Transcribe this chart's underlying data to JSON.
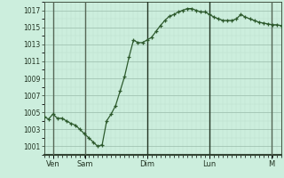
{
  "bg_color": "#cceedd",
  "line_color": "#2d5a2d",
  "grid_color_major": "#99bbaa",
  "grid_color_minor": "#bbddcc",
  "ylim": [
    1000.0,
    1018.0
  ],
  "yticks": [
    1001,
    1003,
    1005,
    1007,
    1009,
    1011,
    1013,
    1015,
    1017
  ],
  "day_labels": [
    "Ven",
    "Sam",
    "Dim",
    "Lun",
    "M"
  ],
  "day_x_positions": [
    12,
    55,
    138,
    222,
    305
  ],
  "vline_x_positions": [
    12,
    55,
    138,
    222,
    305
  ],
  "vline_colors": [
    "#556655",
    "#556655",
    "#223322",
    "#223322",
    "#556655"
  ],
  "x": [
    0,
    6,
    12,
    18,
    24,
    30,
    36,
    42,
    48,
    54,
    60,
    66,
    72,
    78,
    84,
    90,
    96,
    102,
    108,
    114,
    120,
    126,
    132,
    138,
    144,
    150,
    156,
    162,
    168,
    174,
    180,
    186,
    192,
    198,
    204,
    210,
    216,
    222,
    228,
    234,
    240,
    246,
    252,
    258,
    264,
    270,
    276,
    282,
    288,
    294,
    300,
    306,
    312,
    318
  ],
  "y": [
    1004.5,
    1004.2,
    1004.8,
    1004.3,
    1004.3,
    1004.0,
    1003.7,
    1003.5,
    1003.0,
    1002.5,
    1002.0,
    1001.5,
    1001.0,
    1001.2,
    1004.0,
    1004.8,
    1005.8,
    1007.5,
    1009.2,
    1011.5,
    1013.5,
    1013.2,
    1013.2,
    1013.5,
    1013.8,
    1014.5,
    1015.2,
    1015.8,
    1016.3,
    1016.5,
    1016.8,
    1017.0,
    1017.2,
    1017.2,
    1017.0,
    1016.8,
    1016.8,
    1016.5,
    1016.2,
    1016.0,
    1015.8,
    1015.8,
    1015.8,
    1016.0,
    1016.5,
    1016.2,
    1016.0,
    1015.8,
    1015.6,
    1015.5,
    1015.4,
    1015.3,
    1015.3,
    1015.2
  ],
  "xlabel_fontsize": 6,
  "ylabel_fontsize": 6,
  "bottom_color": "#334433"
}
